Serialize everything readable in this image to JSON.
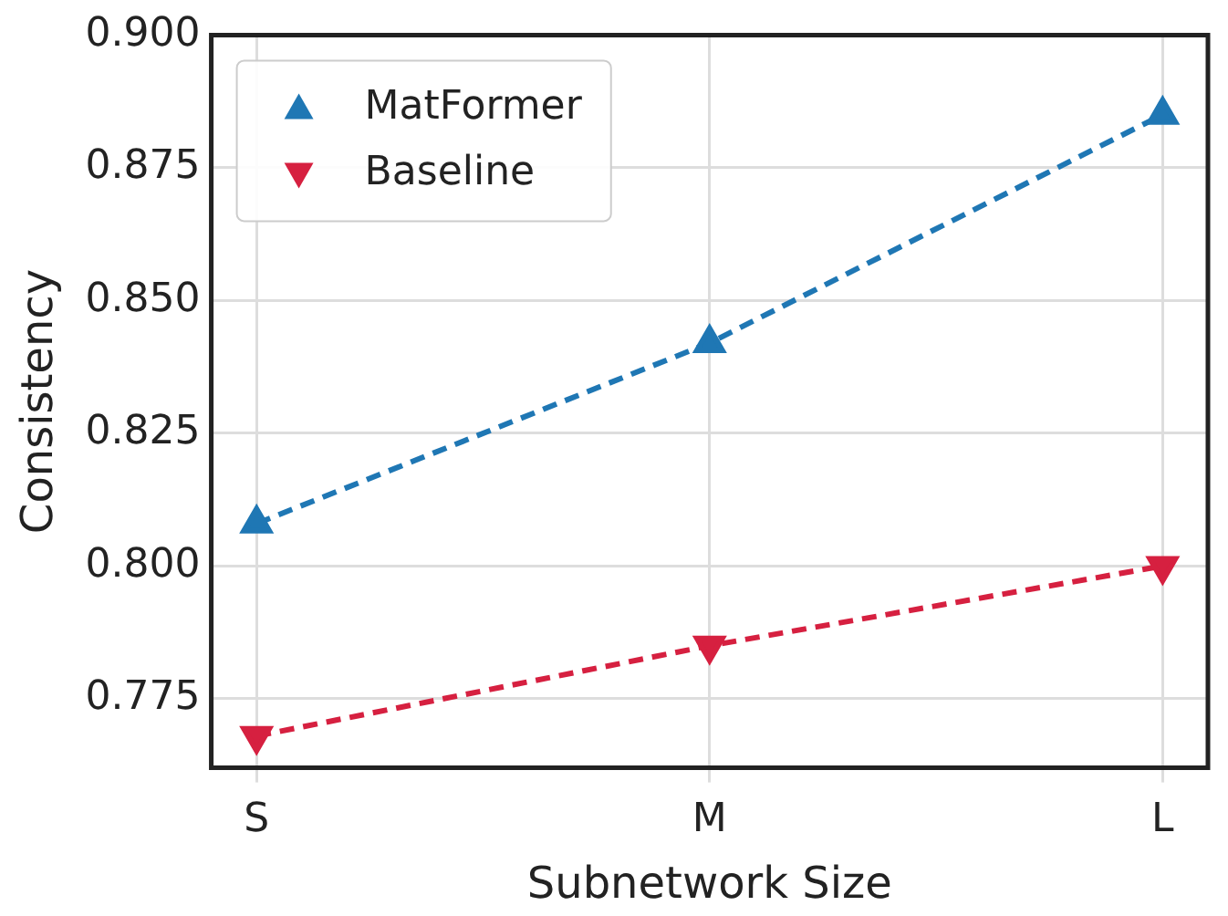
{
  "chart_data": {
    "type": "line",
    "xlabel": "Subnetwork Size",
    "ylabel": "Consistency",
    "categories": [
      "S",
      "M",
      "L"
    ],
    "series": [
      {
        "name": "MatFormer",
        "color": "#1f77b4",
        "values": [
          0.808,
          0.842,
          0.885
        ],
        "marker": "triangle"
      },
      {
        "name": "Baseline",
        "color": "#d62040",
        "values": [
          0.768,
          0.785,
          0.8
        ],
        "marker": "triangle-down"
      }
    ],
    "ylim": [
      0.762,
      0.9
    ],
    "yticks": [
      {
        "value": 0.775,
        "label": "0.775"
      },
      {
        "value": 0.8,
        "label": "0.800"
      },
      {
        "value": 0.825,
        "label": "0.825"
      },
      {
        "value": 0.85,
        "label": "0.850"
      },
      {
        "value": 0.875,
        "label": "0.875"
      },
      {
        "value": 0.9,
        "label": "0.900"
      }
    ],
    "grid": true,
    "legend": "top left",
    "line_style": "dashed"
  }
}
